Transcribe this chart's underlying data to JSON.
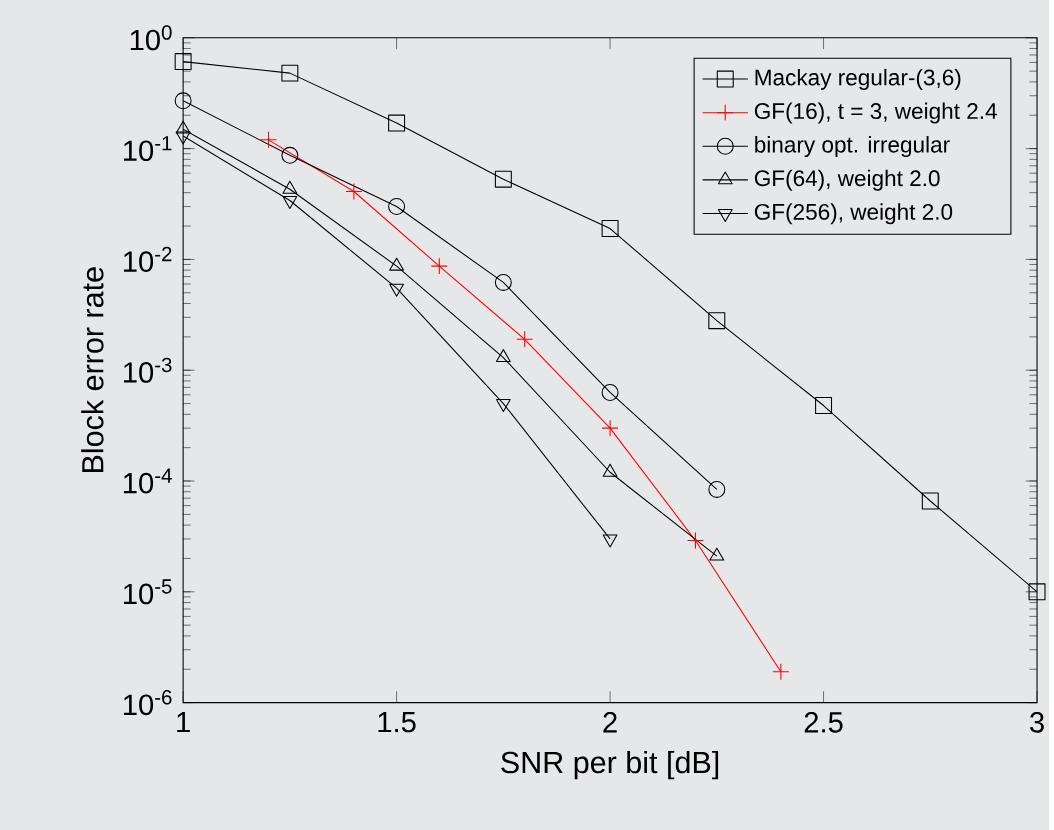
{
  "chart_data": {
    "type": "line",
    "xlabel": "SNR per bit [dB]",
    "ylabel": "Block error rate",
    "log": "y",
    "grid": false,
    "legend": "top right",
    "xlim": [
      1,
      3
    ],
    "ylim": [
      1e-06,
      1
    ],
    "xticks": [
      1,
      1.5,
      2,
      2.5,
      3
    ],
    "yticks": [
      {
        "value": 1e-06,
        "label": "10$^{-6}$"
      },
      {
        "value": 1e-05,
        "label": "10$^{-5}$"
      },
      {
        "value": 0.0001,
        "label": "10$^{-4}$"
      },
      {
        "value": 0.001,
        "label": "10$^{-3}$"
      },
      {
        "value": 0.01,
        "label": "10$^{-2}$"
      },
      {
        "value": 0.1,
        "label": "10$^{-1}$"
      },
      {
        "value": 1,
        "label": "10$^{0}$"
      }
    ],
    "series": [
      {
        "name": "Mackay regular-(3,6)",
        "color": "#000000",
        "marker": "square",
        "x": [
          1,
          1.25,
          1.5,
          1.75,
          2,
          2.25,
          2.5,
          2.75,
          3
        ],
        "values": [
          0.61,
          0.48,
          0.17,
          0.053,
          0.019,
          0.0028,
          0.00048,
          6.6e-05,
          1e-05
        ]
      },
      {
        "name": "GF(16), t = 3, weight 2.4",
        "color": "#ff0000",
        "marker": "cross",
        "x": [
          1.2,
          1.4,
          1.6,
          1.8,
          2,
          2.2,
          2.4
        ],
        "values": [
          0.12,
          0.041,
          0.0087,
          0.0019,
          0.0003,
          2.9e-05,
          1.9e-06
        ]
      },
      {
        "name": "binary opt. irregular",
        "color": "#000000",
        "marker": "circle",
        "x": [
          1,
          1.25,
          1.5,
          1.75,
          2,
          2.25
        ],
        "values": [
          0.27,
          0.087,
          0.03,
          0.0062,
          0.00063,
          8.4e-05
        ]
      },
      {
        "name": "GF(64), weight 2.0",
        "color": "#000000",
        "marker": "triangle",
        "x": [
          1,
          1.25,
          1.5,
          1.75,
          2,
          2.25
        ],
        "values": [
          0.15,
          0.043,
          0.0087,
          0.0013,
          0.00012,
          2.1e-05
        ]
      },
      {
        "name": "GF(256), weight 2.0",
        "color": "#000000",
        "marker": "triangle-down",
        "x": [
          1,
          1.25,
          1.5,
          1.75,
          2
        ],
        "values": [
          0.13,
          0.034,
          0.0055,
          0.0005,
          3e-05
        ]
      }
    ]
  }
}
